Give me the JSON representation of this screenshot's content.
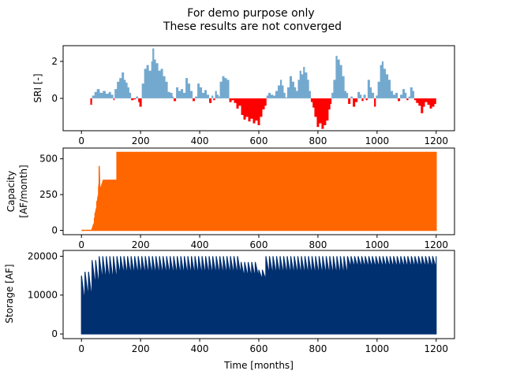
{
  "figure": {
    "title_line1": "For demo purpose only",
    "title_line2": "These results are not converged"
  },
  "chart_data": [
    {
      "type": "bar",
      "name": "sri-panel",
      "ylabel": "SRI [-]",
      "xlabel": "",
      "xlim": [
        -62,
        1262
      ],
      "ylim": [
        -1.75,
        2.85
      ],
      "xticks": [
        0,
        200,
        400,
        600,
        800,
        1000,
        1200
      ],
      "yticks": [
        0,
        2
      ],
      "positive_color": "#74a9cf",
      "negative_color": "#ff0000",
      "x_range": [
        30,
        1200
      ],
      "segments": [
        {
          "x": 30,
          "v": -0.35
        },
        {
          "x": 36,
          "v": 0.15
        },
        {
          "x": 44,
          "v": 0.35
        },
        {
          "x": 52,
          "v": 0.5
        },
        {
          "x": 62,
          "v": 0.3
        },
        {
          "x": 72,
          "v": 0.4
        },
        {
          "x": 82,
          "v": 0.25
        },
        {
          "x": 92,
          "v": 0.35
        },
        {
          "x": 100,
          "v": 0.2
        },
        {
          "x": 108,
          "v": -0.1
        },
        {
          "x": 112,
          "v": 0.5
        },
        {
          "x": 120,
          "v": 0.9
        },
        {
          "x": 128,
          "v": 1.1
        },
        {
          "x": 136,
          "v": 1.4
        },
        {
          "x": 144,
          "v": 1.0
        },
        {
          "x": 150,
          "v": 0.85
        },
        {
          "x": 156,
          "v": 0.6
        },
        {
          "x": 162,
          "v": 0.3
        },
        {
          "x": 168,
          "v": -0.1
        },
        {
          "x": 176,
          "v": -0.05
        },
        {
          "x": 184,
          "v": 0.1
        },
        {
          "x": 192,
          "v": -0.2
        },
        {
          "x": 196,
          "v": -0.45
        },
        {
          "x": 204,
          "v": 0.8
        },
        {
          "x": 212,
          "v": 1.6
        },
        {
          "x": 220,
          "v": 1.8
        },
        {
          "x": 228,
          "v": 1.5
        },
        {
          "x": 236,
          "v": 2.0
        },
        {
          "x": 240,
          "v": 2.7
        },
        {
          "x": 246,
          "v": 2.1
        },
        {
          "x": 252,
          "v": 1.9
        },
        {
          "x": 260,
          "v": 1.5
        },
        {
          "x": 268,
          "v": 1.6
        },
        {
          "x": 276,
          "v": 1.2
        },
        {
          "x": 284,
          "v": 0.9
        },
        {
          "x": 292,
          "v": 0.35
        },
        {
          "x": 300,
          "v": 0.3
        },
        {
          "x": 308,
          "v": 0.1
        },
        {
          "x": 312,
          "v": -0.15
        },
        {
          "x": 320,
          "v": 0.6
        },
        {
          "x": 328,
          "v": 0.4
        },
        {
          "x": 336,
          "v": 0.5
        },
        {
          "x": 344,
          "v": 0.3
        },
        {
          "x": 352,
          "v": 1.1
        },
        {
          "x": 360,
          "v": 0.8
        },
        {
          "x": 368,
          "v": 0.4
        },
        {
          "x": 376,
          "v": -0.15
        },
        {
          "x": 384,
          "v": 0.1
        },
        {
          "x": 392,
          "v": 0.8
        },
        {
          "x": 400,
          "v": 0.6
        },
        {
          "x": 408,
          "v": 0.3
        },
        {
          "x": 416,
          "v": 0.45
        },
        {
          "x": 424,
          "v": 0.2
        },
        {
          "x": 432,
          "v": -0.25
        },
        {
          "x": 440,
          "v": 0.15
        },
        {
          "x": 446,
          "v": -0.1
        },
        {
          "x": 452,
          "v": 0.4
        },
        {
          "x": 458,
          "v": 0.2
        },
        {
          "x": 464,
          "v": 0.1
        },
        {
          "x": 468,
          "v": 0.9
        },
        {
          "x": 476,
          "v": 1.2
        },
        {
          "x": 484,
          "v": 1.1
        },
        {
          "x": 492,
          "v": 1.0
        },
        {
          "x": 500,
          "v": -0.2
        },
        {
          "x": 508,
          "v": -0.1
        },
        {
          "x": 516,
          "v": -0.25
        },
        {
          "x": 524,
          "v": -0.55
        },
        {
          "x": 532,
          "v": -0.4
        },
        {
          "x": 540,
          "v": -0.9
        },
        {
          "x": 548,
          "v": -1.15
        },
        {
          "x": 556,
          "v": -1.0
        },
        {
          "x": 564,
          "v": -1.25
        },
        {
          "x": 572,
          "v": -1.1
        },
        {
          "x": 580,
          "v": -1.35
        },
        {
          "x": 588,
          "v": -1.2
        },
        {
          "x": 596,
          "v": -1.45
        },
        {
          "x": 604,
          "v": -1.0
        },
        {
          "x": 612,
          "v": -0.6
        },
        {
          "x": 620,
          "v": -0.4
        },
        {
          "x": 626,
          "v": 0.15
        },
        {
          "x": 632,
          "v": 0.3
        },
        {
          "x": 640,
          "v": 0.2
        },
        {
          "x": 648,
          "v": 0.15
        },
        {
          "x": 656,
          "v": 0.4
        },
        {
          "x": 664,
          "v": 0.7
        },
        {
          "x": 672,
          "v": 1.0
        },
        {
          "x": 678,
          "v": 0.7
        },
        {
          "x": 684,
          "v": 0.3
        },
        {
          "x": 690,
          "v": 0.05
        },
        {
          "x": 696,
          "v": 0.6
        },
        {
          "x": 704,
          "v": 1.2
        },
        {
          "x": 712,
          "v": 0.9
        },
        {
          "x": 720,
          "v": 0.6
        },
        {
          "x": 726,
          "v": 0.4
        },
        {
          "x": 732,
          "v": 1.0
        },
        {
          "x": 738,
          "v": 1.5
        },
        {
          "x": 744,
          "v": 1.3
        },
        {
          "x": 750,
          "v": 1.7
        },
        {
          "x": 756,
          "v": 1.4
        },
        {
          "x": 764,
          "v": 1.0
        },
        {
          "x": 770,
          "v": 0.4
        },
        {
          "x": 776,
          "v": -0.2
        },
        {
          "x": 782,
          "v": -0.5
        },
        {
          "x": 788,
          "v": -1.0
        },
        {
          "x": 796,
          "v": -1.55
        },
        {
          "x": 804,
          "v": -1.35
        },
        {
          "x": 812,
          "v": -1.65
        },
        {
          "x": 820,
          "v": -1.45
        },
        {
          "x": 828,
          "v": -1.2
        },
        {
          "x": 836,
          "v": -0.6
        },
        {
          "x": 842,
          "v": -0.3
        },
        {
          "x": 846,
          "v": 0.3
        },
        {
          "x": 852,
          "v": 1.0
        },
        {
          "x": 860,
          "v": 2.3
        },
        {
          "x": 866,
          "v": 2.1
        },
        {
          "x": 874,
          "v": 1.8
        },
        {
          "x": 882,
          "v": 1.2
        },
        {
          "x": 890,
          "v": 0.4
        },
        {
          "x": 896,
          "v": 0.3
        },
        {
          "x": 902,
          "v": -0.3
        },
        {
          "x": 910,
          "v": 0.1
        },
        {
          "x": 918,
          "v": -0.45
        },
        {
          "x": 926,
          "v": -0.2
        },
        {
          "x": 934,
          "v": 0.35
        },
        {
          "x": 942,
          "v": 0.2
        },
        {
          "x": 948,
          "v": -0.15
        },
        {
          "x": 954,
          "v": 0.2
        },
        {
          "x": 962,
          "v": -0.1
        },
        {
          "x": 968,
          "v": 1.0
        },
        {
          "x": 976,
          "v": 0.6
        },
        {
          "x": 982,
          "v": 0.3
        },
        {
          "x": 990,
          "v": -0.45
        },
        {
          "x": 996,
          "v": 0.15
        },
        {
          "x": 1002,
          "v": 0.9
        },
        {
          "x": 1010,
          "v": 1.8
        },
        {
          "x": 1016,
          "v": 2.0
        },
        {
          "x": 1022,
          "v": 1.6
        },
        {
          "x": 1030,
          "v": 1.3
        },
        {
          "x": 1038,
          "v": 1.0
        },
        {
          "x": 1046,
          "v": 0.4
        },
        {
          "x": 1054,
          "v": 0.2
        },
        {
          "x": 1062,
          "v": 0.3
        },
        {
          "x": 1070,
          "v": -0.15
        },
        {
          "x": 1078,
          "v": 0.2
        },
        {
          "x": 1086,
          "v": 0.5
        },
        {
          "x": 1094,
          "v": 0.3
        },
        {
          "x": 1100,
          "v": -0.1
        },
        {
          "x": 1106,
          "v": 0.1
        },
        {
          "x": 1112,
          "v": 0.6
        },
        {
          "x": 1120,
          "v": 0.4
        },
        {
          "x": 1126,
          "v": -0.1
        },
        {
          "x": 1132,
          "v": -0.25
        },
        {
          "x": 1140,
          "v": -0.4
        },
        {
          "x": 1148,
          "v": -0.8
        },
        {
          "x": 1156,
          "v": -0.45
        },
        {
          "x": 1162,
          "v": -0.2
        },
        {
          "x": 1170,
          "v": -0.35
        },
        {
          "x": 1178,
          "v": -0.55
        },
        {
          "x": 1186,
          "v": -0.45
        },
        {
          "x": 1194,
          "v": -0.3
        }
      ]
    },
    {
      "type": "area",
      "name": "capacity-panel",
      "ylabel_line1": "Capacity",
      "ylabel_line2": "[AF/month]",
      "xlabel": "",
      "xlim": [
        -62,
        1262
      ],
      "ylim": [
        -30,
        575
      ],
      "xticks": [
        0,
        200,
        400,
        600,
        800,
        1000,
        1200
      ],
      "yticks": [
        0,
        250,
        500
      ],
      "color": "#ff6600",
      "points": [
        [
          0,
          0
        ],
        [
          34,
          0
        ],
        [
          36,
          8
        ],
        [
          38,
          20
        ],
        [
          40,
          35
        ],
        [
          42,
          45
        ],
        [
          44,
          50
        ],
        [
          44,
          85
        ],
        [
          46,
          90
        ],
        [
          46,
          120
        ],
        [
          48,
          125
        ],
        [
          50,
          150
        ],
        [
          52,
          155
        ],
        [
          52,
          200
        ],
        [
          54,
          205
        ],
        [
          56,
          235
        ],
        [
          58,
          250
        ],
        [
          58,
          300
        ],
        [
          60,
          330
        ],
        [
          60,
          450
        ],
        [
          62,
          300
        ],
        [
          62,
          290
        ],
        [
          66,
          300
        ],
        [
          70,
          325
        ],
        [
          74,
          350
        ],
        [
          120,
          350
        ],
        [
          120,
          545
        ],
        [
          1200,
          545
        ],
        [
          1200,
          0
        ]
      ]
    },
    {
      "type": "area",
      "name": "storage-panel",
      "ylabel": "Storage [AF]",
      "xlabel": "Time [months]",
      "xlim": [
        -62,
        1262
      ],
      "ylim": [
        -1200,
        21500
      ],
      "xticks": [
        0,
        200,
        400,
        600,
        800,
        1000,
        1200
      ],
      "yticks": [
        0,
        10000,
        20000
      ],
      "color": "#003070",
      "sawtooth": {
        "x_start": 0,
        "x_end": 1200,
        "period_months": 12,
        "peak": 20000,
        "trough_default": 15000,
        "troughs": [
          {
            "from": 0,
            "to": 12,
            "peak": 15000,
            "trough": 8000
          },
          {
            "from": 12,
            "to": 36,
            "peak": 16000,
            "trough": 9000
          },
          {
            "from": 36,
            "to": 60,
            "peak": 19000,
            "trough": 12000
          },
          {
            "from": 60,
            "to": 120,
            "peak": 20000,
            "trough": 13500
          },
          {
            "from": 540,
            "to": 600,
            "peak": 18500,
            "trough": 14500
          },
          {
            "from": 600,
            "to": 620,
            "peak": 16500,
            "trough": 14000
          },
          {
            "from": 900,
            "to": 1200,
            "peak": 20000,
            "trough": 17000
          }
        ]
      }
    }
  ]
}
